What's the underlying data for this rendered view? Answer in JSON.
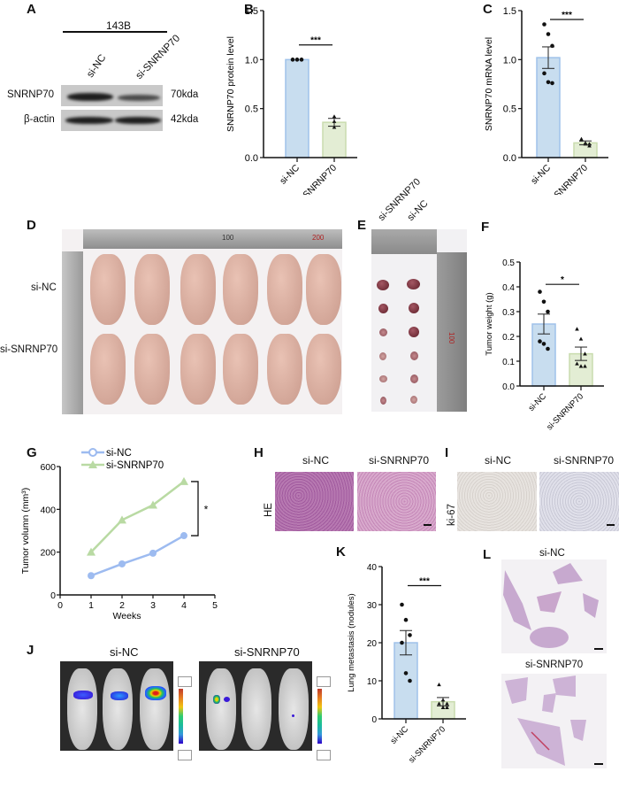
{
  "panels": {
    "A": {
      "label": "A",
      "cell_line": "143B",
      "lanes": [
        "si-NC",
        "si-SNRNP70"
      ],
      "rows": [
        {
          "protein": "SNRNP70",
          "size": "70kda"
        },
        {
          "protein": "β-actin",
          "size": "42kda"
        }
      ]
    },
    "B": {
      "label": "B"
    },
    "C": {
      "label": "C"
    },
    "D": {
      "label": "D",
      "row_labels": [
        "si-NC",
        "si-SNRNP70"
      ],
      "ruler_marks": [
        "100",
        "200"
      ]
    },
    "E": {
      "label": "E",
      "column_labels": [
        "si-SNRNP70",
        "si-NC"
      ],
      "ruler_marks": [
        "50",
        "100"
      ]
    },
    "F": {
      "label": "F"
    },
    "G": {
      "label": "G"
    },
    "H": {
      "label": "H",
      "column_labels": [
        "si-NC",
        "si-SNRNP70"
      ],
      "row_label": "HE"
    },
    "I": {
      "label": "I",
      "column_labels": [
        "si-NC",
        "si-SNRNP70"
      ],
      "row_label": "ki-67"
    },
    "J": {
      "label": "J",
      "groups": [
        "si-NC",
        "si-SNRNP70"
      ]
    },
    "K": {
      "label": "K"
    },
    "L": {
      "label": "L",
      "groups": [
        "si-NC",
        "si-SNRNP70"
      ]
    }
  },
  "colors": {
    "nc_bar": "#c8ddef",
    "nc_edge": "#9fc2ea",
    "kd_bar": "#e3edd4",
    "kd_edge": "#c9dcae",
    "nc_line": "#9dbbf0",
    "kd_line": "#b9daa3",
    "axis": "#111111"
  },
  "chart_data": [
    {
      "id": "B",
      "type": "bar",
      "title": "",
      "xlabel": "",
      "ylabel": "SNRNP70 protein level",
      "categories": [
        "si-NC",
        "si-SNRNP70"
      ],
      "values": [
        1.0,
        0.36
      ],
      "sem": [
        0.0,
        0.04
      ],
      "points": [
        [
          1.0,
          1.0,
          1.0
        ],
        [
          0.42,
          0.37,
          0.31
        ]
      ],
      "markers": [
        "circle",
        "triangle"
      ],
      "ylim": [
        0,
        1.5
      ],
      "yticks": [
        "0.0",
        "0.5",
        "1.0",
        "1.5"
      ],
      "significance": "***",
      "grid": false
    },
    {
      "id": "C",
      "type": "bar",
      "title": "",
      "xlabel": "",
      "ylabel": "SNRNP70 mRNA level",
      "categories": [
        "si-NC",
        "si-SNRNP70"
      ],
      "values": [
        1.02,
        0.15
      ],
      "sem": [
        0.11,
        0.02
      ],
      "points": [
        [
          1.36,
          1.26,
          1.14,
          0.86,
          0.77,
          0.76
        ],
        [
          0.18,
          0.15,
          0.12,
          0.19,
          0.14,
          0.14
        ]
      ],
      "markers": [
        "circle",
        "triangle"
      ],
      "ylim": [
        0,
        1.5
      ],
      "yticks": [
        "0.0",
        "0.5",
        "1.0",
        "1.5"
      ],
      "significance": "***",
      "grid": false
    },
    {
      "id": "F",
      "type": "bar",
      "title": "",
      "xlabel": "",
      "ylabel": "Tumor weight (g)",
      "categories": [
        "si-NC",
        "si-SNRNP70"
      ],
      "values": [
        0.25,
        0.13
      ],
      "sem": [
        0.04,
        0.027
      ],
      "points": [
        [
          0.38,
          0.34,
          0.3,
          0.18,
          0.17,
          0.15
        ],
        [
          0.23,
          0.19,
          0.13,
          0.09,
          0.08,
          0.08
        ]
      ],
      "markers": [
        "circle",
        "triangle"
      ],
      "ylim": [
        0,
        0.5
      ],
      "yticks": [
        "0.0",
        "0.1",
        "0.2",
        "0.3",
        "0.4",
        "0.5"
      ],
      "significance": "*",
      "grid": false
    },
    {
      "id": "G",
      "type": "line",
      "title": "",
      "xlabel": "Weeks",
      "ylabel": "Tumor volumn (mm³)",
      "x": [
        1,
        2,
        3,
        4
      ],
      "series": [
        {
          "name": "si-NC",
          "values": [
            90,
            145,
            195,
            277
          ],
          "marker": "circle"
        },
        {
          "name": "si-SNRNP70",
          "values": [
            200,
            350,
            420,
            530
          ],
          "marker": "triangle"
        }
      ],
      "xlim": [
        0,
        5
      ],
      "ylim": [
        0,
        600
      ],
      "xticks": [
        "0",
        "1",
        "2",
        "3",
        "4",
        "5"
      ],
      "yticks": [
        "0",
        "200",
        "400",
        "600"
      ],
      "legend_position": "top-left",
      "significance": "*",
      "grid": false
    },
    {
      "id": "K",
      "type": "bar",
      "title": "",
      "xlabel": "",
      "ylabel": "Lung metastasis (nodules)",
      "categories": [
        "si-NC",
        "si-SNRNP70"
      ],
      "values": [
        20,
        4.5
      ],
      "sem": [
        3.2,
        1.1
      ],
      "points": [
        [
          30,
          26,
          22,
          20,
          12,
          10
        ],
        [
          9,
          5,
          4,
          4,
          3,
          3
        ]
      ],
      "markers": [
        "circle",
        "triangle"
      ],
      "ylim": [
        0,
        40
      ],
      "yticks": [
        "0",
        "10",
        "20",
        "30",
        "40"
      ],
      "significance": "***",
      "grid": false
    }
  ]
}
